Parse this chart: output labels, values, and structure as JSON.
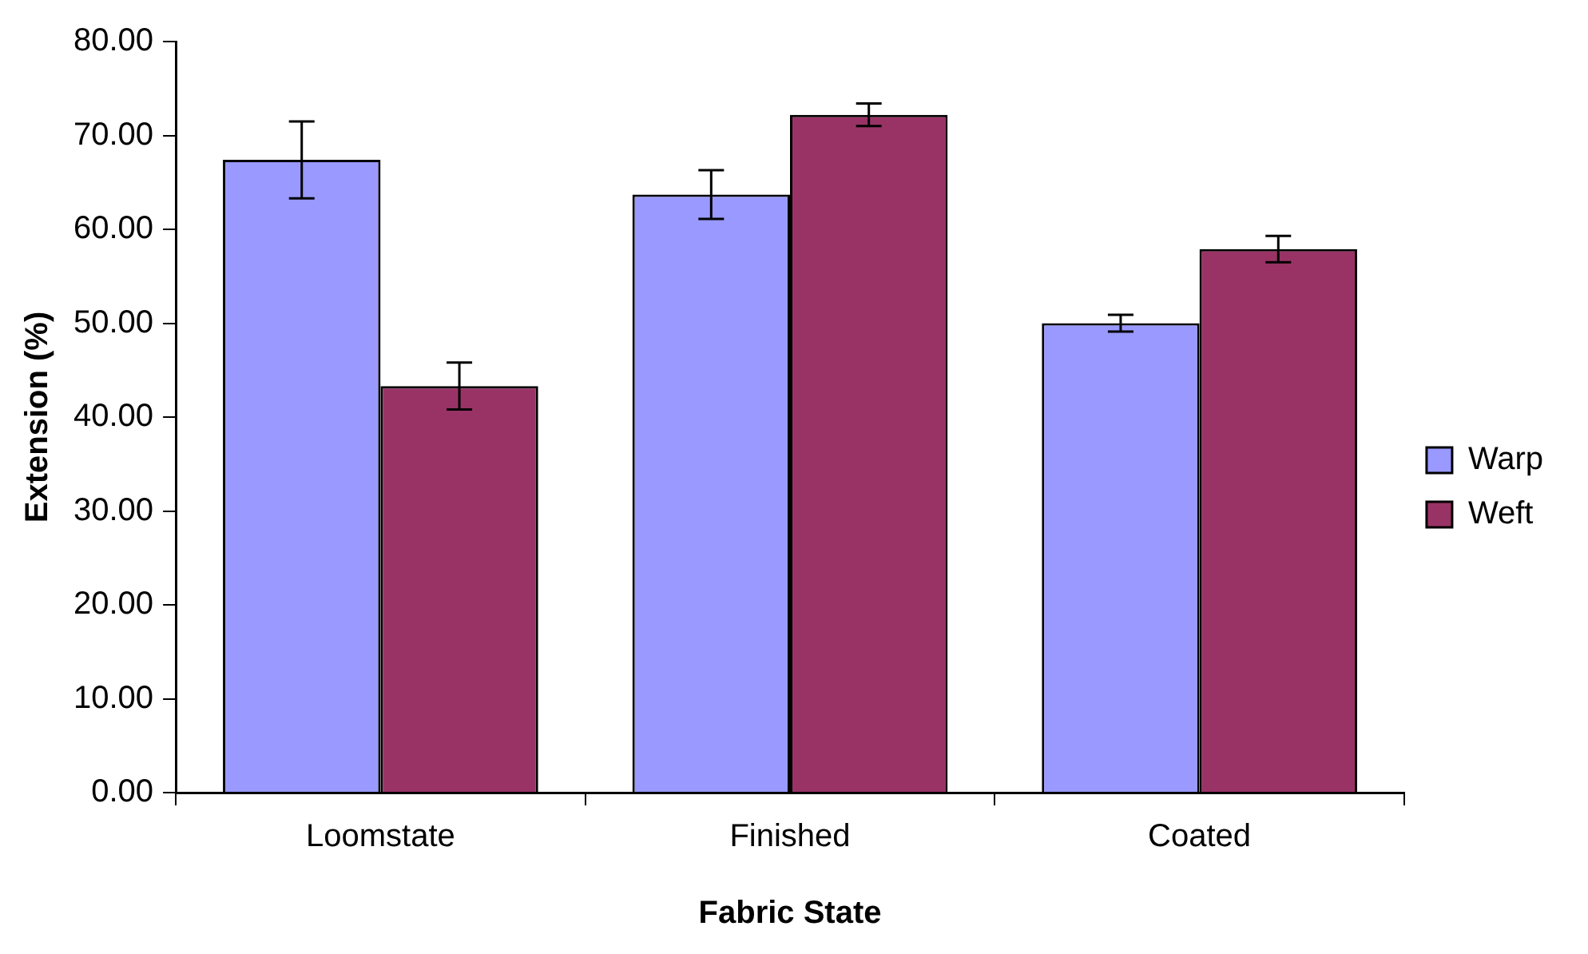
{
  "chart_data": {
    "type": "bar",
    "xlabel": "Fabric State",
    "ylabel": "Extension (%)",
    "categories": [
      "Loomstate",
      "Finished",
      "Coated"
    ],
    "series": [
      {
        "name": "Warp",
        "color": "#9999ff",
        "values": [
          67.4,
          63.7,
          50.0
        ],
        "errors": [
          4.1,
          2.6,
          0.9
        ]
      },
      {
        "name": "Weft",
        "color": "#993366",
        "values": [
          43.3,
          72.2,
          57.9
        ],
        "errors": [
          2.5,
          1.2,
          1.4
        ]
      }
    ],
    "ylim": [
      0,
      80
    ],
    "yticks": [
      {
        "value": 0,
        "label": "0.00"
      },
      {
        "value": 10,
        "label": "10.00"
      },
      {
        "value": 20,
        "label": "20.00"
      },
      {
        "value": 30,
        "label": "30.00"
      },
      {
        "value": 40,
        "label": "40.00"
      },
      {
        "value": 50,
        "label": "50.00"
      },
      {
        "value": 60,
        "label": "60.00"
      },
      {
        "value": 70,
        "label": "70.00"
      },
      {
        "value": 80,
        "label": "80.00"
      }
    ],
    "grid": false,
    "legend": "right"
  }
}
